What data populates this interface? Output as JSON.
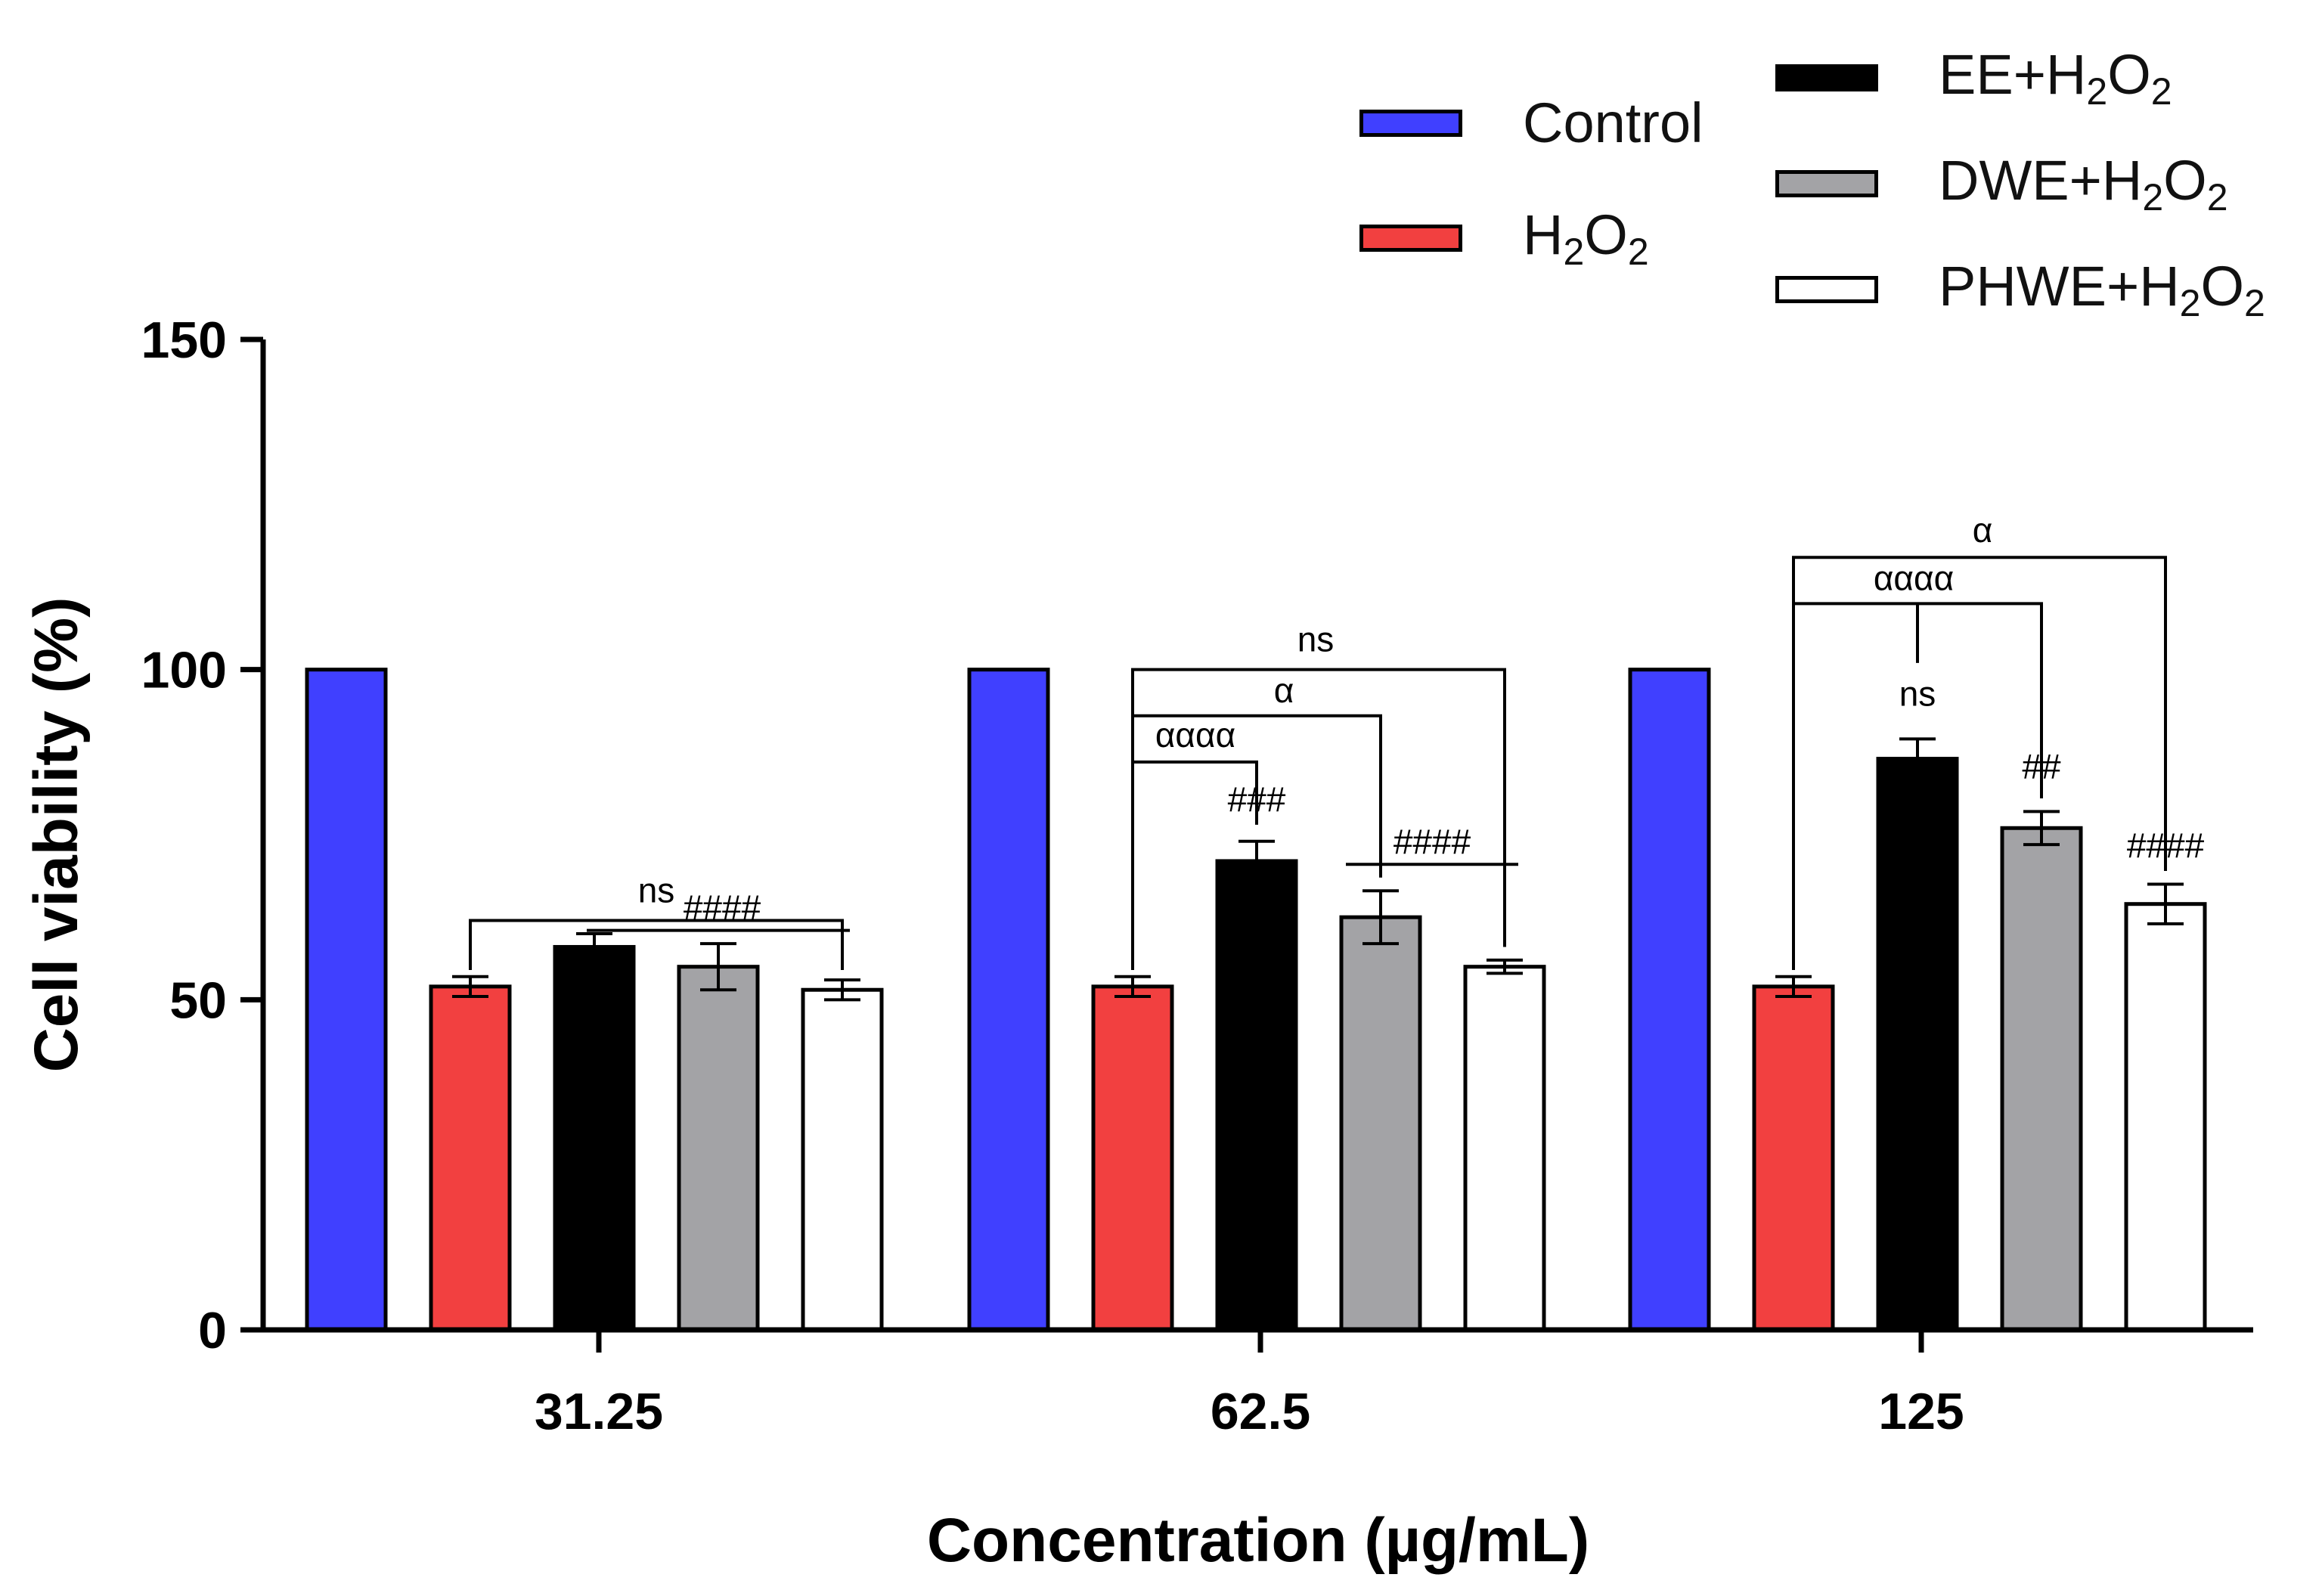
{
  "chart_data": {
    "type": "bar",
    "xlabel": "Concentration (µg/mL)",
    "ylabel": "Cell viability (%)",
    "ylim": [
      0,
      150
    ],
    "yticks": [
      "0",
      "50",
      "100",
      "150"
    ],
    "categories": [
      "31.25",
      "62.5",
      "125"
    ],
    "series": [
      {
        "name": "Control",
        "label_main": "Control",
        "label_after": "",
        "color": "#4040ff",
        "values": [
          100,
          100,
          100
        ],
        "errors": [
          0,
          0,
          0
        ]
      },
      {
        "name": "H2O2",
        "label_main": "H",
        "label_after": "",
        "color": "#f24040",
        "values": [
          52,
          52,
          52
        ],
        "errors": [
          1.5,
          1.5,
          1.5
        ]
      },
      {
        "name": "EE+H2O2",
        "label_main": "EE+H",
        "label_after": "",
        "color": "#000000",
        "values": [
          58,
          71,
          86.5
        ],
        "errors": [
          2,
          3,
          3
        ]
      },
      {
        "name": "DWE+H2O2",
        "label_main": "DWE+H",
        "label_after": "",
        "color": "#a3a3a6",
        "values": [
          55,
          62.5,
          76
        ],
        "errors": [
          3.5,
          4,
          2.5
        ]
      },
      {
        "name": "PHWE+H2O2",
        "label_main": "PHWE+H",
        "label_after": "",
        "color": "#ffffff",
        "values": [
          51.5,
          55,
          64.5
        ],
        "errors": [
          1.5,
          1,
          3
        ]
      }
    ],
    "subscripts": {
      "h": "2",
      "o": "O",
      "two": "2"
    },
    "annotations": {
      "ns": "ns",
      "alpha": "α",
      "alpha4": "αααα",
      "hash2": "##",
      "hash3": "###",
      "hash4": "####"
    }
  }
}
